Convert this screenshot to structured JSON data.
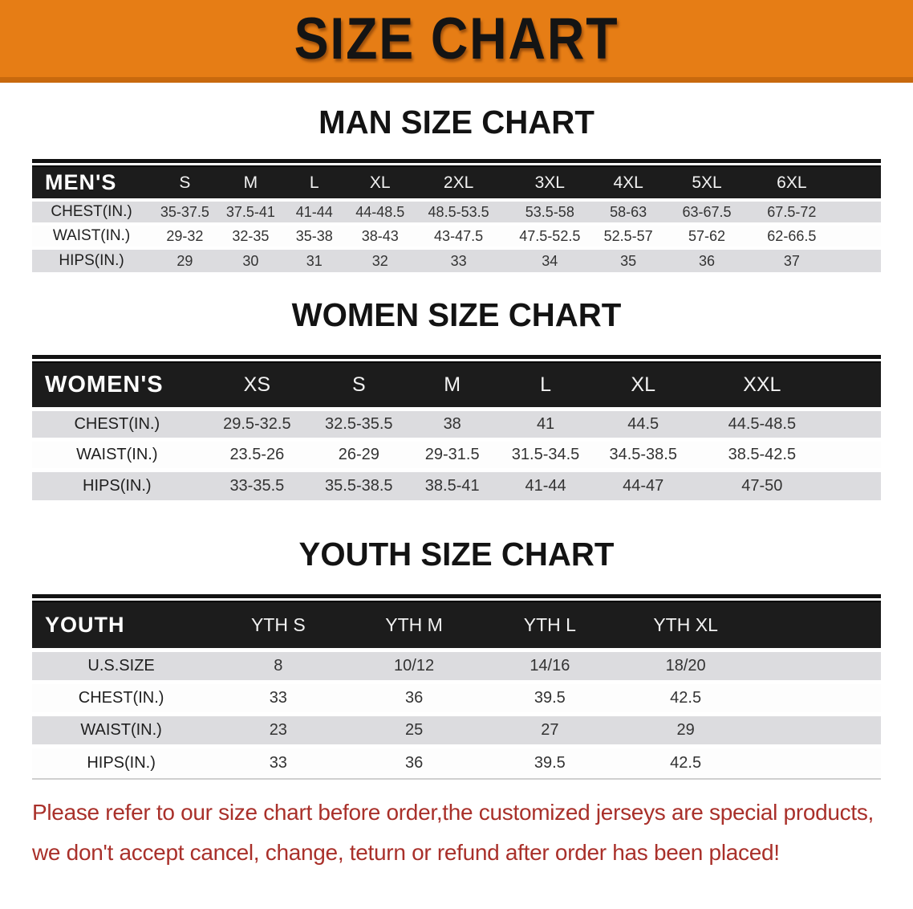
{
  "banner": {
    "title": "SIZE CHART",
    "bg_color": "#e67d15",
    "edge_color": "#c8690d"
  },
  "sections": [
    {
      "key": "men",
      "heading": "MAN SIZE CHART",
      "header_label": "MEN'S",
      "columns": [
        "S",
        "M",
        "L",
        "XL",
        "2XL",
        "3XL",
        "4XL",
        "5XL",
        "6XL"
      ],
      "rows": [
        {
          "label": "CHEST(IN.)",
          "values": [
            "35-37.5",
            "37.5-41",
            "41-44",
            "44-48.5",
            "48.5-53.5",
            "53.5-58",
            "58-63",
            "63-67.5",
            "67.5-72"
          ]
        },
        {
          "label": "WAIST(IN.)",
          "values": [
            "29-32",
            "32-35",
            "35-38",
            "38-43",
            "43-47.5",
            "47.5-52.5",
            "52.5-57",
            "57-62",
            "62-66.5"
          ]
        },
        {
          "label": "HIPS(IN.)",
          "values": [
            "29",
            "30",
            "31",
            "32",
            "33",
            "34",
            "35",
            "36",
            "37"
          ]
        }
      ]
    },
    {
      "key": "women",
      "heading": "WOMEN SIZE CHART",
      "header_label": "WOMEN'S",
      "columns": [
        "XS",
        "S",
        "M",
        "L",
        "XL",
        "XXL"
      ],
      "rows": [
        {
          "label": "CHEST(IN.)",
          "values": [
            "29.5-32.5",
            "32.5-35.5",
            "38",
            "41",
            "44.5",
            "44.5-48.5"
          ]
        },
        {
          "label": "WAIST(IN.)",
          "values": [
            "23.5-26",
            "26-29",
            "29-31.5",
            "31.5-34.5",
            "34.5-38.5",
            "38.5-42.5"
          ]
        },
        {
          "label": "HIPS(IN.)",
          "values": [
            "33-35.5",
            "35.5-38.5",
            "38.5-41",
            "41-44",
            "44-47",
            "47-50"
          ]
        }
      ]
    },
    {
      "key": "youth",
      "heading": "YOUTH SIZE CHART",
      "header_label": "YOUTH",
      "columns": [
        "YTH S",
        "YTH M",
        "YTH L",
        "YTH XL"
      ],
      "rows": [
        {
          "label": "U.S.SIZE",
          "values": [
            "8",
            "10/12",
            "14/16",
            "18/20"
          ]
        },
        {
          "label": "CHEST(IN.)",
          "values": [
            "33",
            "36",
            "39.5",
            "42.5"
          ]
        },
        {
          "label": "WAIST(IN.)",
          "values": [
            "23",
            "25",
            "27",
            "29"
          ]
        },
        {
          "label": "HIPS(IN.)",
          "values": [
            "33",
            "36",
            "39.5",
            "42.5"
          ]
        }
      ]
    }
  ],
  "footer": {
    "text_color": "#a9302a",
    "lines": [
      "Please refer to our size chart before order,the customized jerseys are special products,",
      "we don't accept cancel, change, teturn or refund after order has been placed!"
    ]
  }
}
